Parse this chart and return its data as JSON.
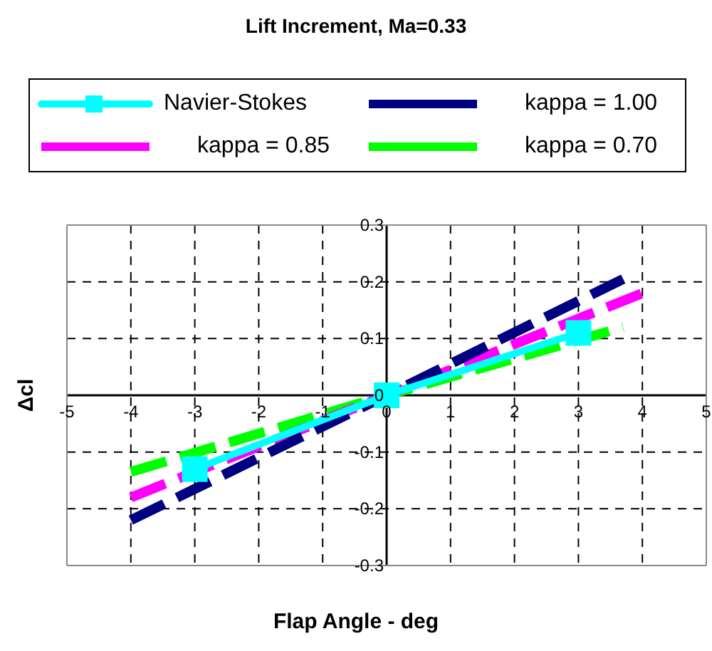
{
  "chart_data": {
    "type": "line",
    "title": "Lift Increment, Ma=0.33",
    "xlabel": "Flap Angle - deg",
    "ylabel": "Δcl",
    "xlim": [
      -5,
      5
    ],
    "xticks": [
      -5,
      -4,
      -3,
      -2,
      -1,
      0,
      1,
      2,
      3,
      4,
      5
    ],
    "ylim": [
      -0.3,
      0.3
    ],
    "yticks": [
      -0.3,
      -0.2,
      -0.1,
      0,
      0.1,
      0.2,
      0.3
    ],
    "grid": true,
    "legend": "top",
    "series": [
      {
        "name": "Navier-Stokes",
        "color": "#00ffff",
        "x": [
          -3,
          0,
          3
        ],
        "values": [
          -0.13,
          0,
          0.11
        ],
        "marker": "square",
        "line_style": "solid"
      },
      {
        "name": "kappa = 1.00",
        "color": "#000080",
        "x": [
          -4,
          0,
          3.7
        ],
        "values": [
          -0.22,
          0,
          0.205
        ],
        "marker": "none",
        "line_style": "dashed"
      },
      {
        "name": "kappa = 0.85",
        "color": "#ff00ff",
        "x": [
          -4,
          0,
          4
        ],
        "values": [
          -0.18,
          0,
          0.18
        ],
        "marker": "none",
        "line_style": "dashed"
      },
      {
        "name": "kappa = 0.70",
        "color": "#00ff00",
        "x": [
          -4,
          0,
          3.7
        ],
        "values": [
          -0.135,
          0,
          0.12
        ],
        "marker": "none",
        "line_style": "dashed"
      }
    ]
  }
}
